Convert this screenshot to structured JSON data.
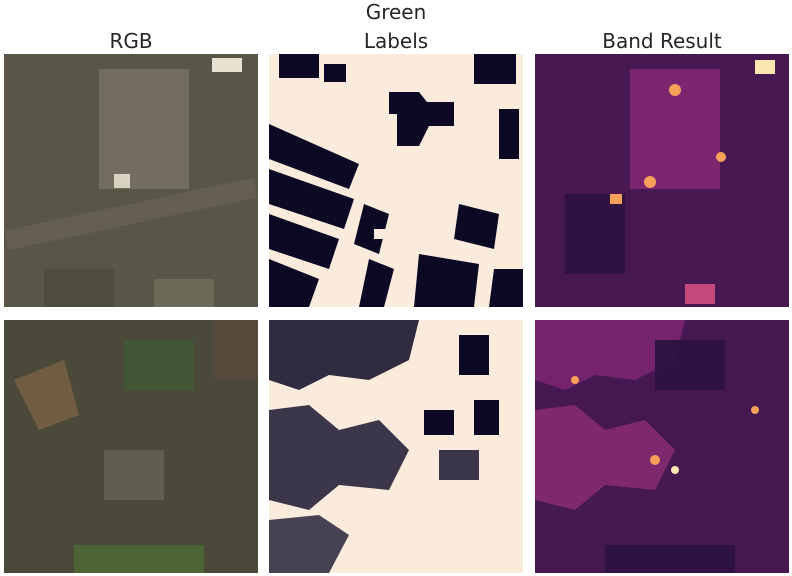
{
  "figure": {
    "title": "Green",
    "columns": [
      {
        "key": "rgb",
        "title": "RGB"
      },
      {
        "key": "labels",
        "title": "Labels"
      },
      {
        "key": "band",
        "title": "Band Result"
      }
    ],
    "rows": 2
  },
  "colors": {
    "background": "#ffffff",
    "title_text": "#262626",
    "label_building": "#0b0924",
    "label_background": "#fbebdd",
    "rgb_top_base": "#5a5647",
    "rgb_bottom_base": "#4b4a3a",
    "rgb_vegetation": "#3f5a35",
    "band_low": "#1e1037",
    "band_mid": "#6b1f6b",
    "band_high": "#f6a05a",
    "band_peak": "#fbe6b0"
  }
}
